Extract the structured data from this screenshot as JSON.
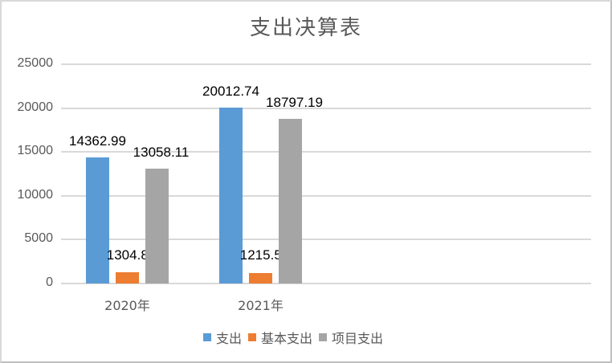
{
  "chart_data": {
    "type": "bar",
    "title": "支出决算表",
    "categories": [
      "2020年",
      "2021年"
    ],
    "series": [
      {
        "name": "支出",
        "color": "#5b9bd5",
        "values": [
          14362.99,
          20012.74
        ],
        "labels": [
          "14362.99",
          "20012.74"
        ]
      },
      {
        "name": "基本支出",
        "color": "#ed7d31",
        "values": [
          1304.88,
          1215.55
        ],
        "labels": [
          "1304.88",
          "1215.55"
        ]
      },
      {
        "name": "项目支出",
        "color": "#a5a5a5",
        "values": [
          13058.11,
          18797.19
        ],
        "labels": [
          "13058.11",
          "18797.19"
        ]
      }
    ],
    "xlabel": "",
    "ylabel": "",
    "ylim": [
      0,
      25000
    ],
    "yticks": [
      "0",
      "5000",
      "10000",
      "15000",
      "20000",
      "25000"
    ],
    "grid": true,
    "legend_position": "bottom"
  }
}
